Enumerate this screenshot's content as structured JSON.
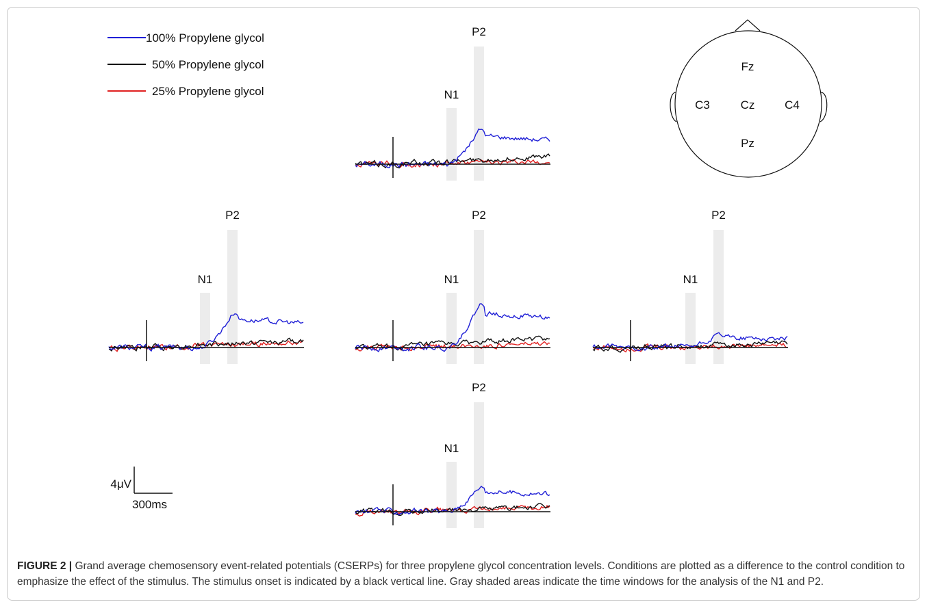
{
  "legend": [
    {
      "label": "100% Propylene glycol",
      "color": "#1f1fd6"
    },
    {
      "label": "50% Propylene glycol",
      "color": "#111111"
    },
    {
      "label": "25% Propylene glycol",
      "color": "#e02020"
    }
  ],
  "peak_labels": {
    "n1": "N1",
    "p2": "P2"
  },
  "head_electrodes": [
    "Fz",
    "C3",
    "Cz",
    "C4",
    "Pz"
  ],
  "scale_bar": {
    "amplitude": "4μV",
    "time": "300ms"
  },
  "caption": {
    "label": "FIGURE 2",
    "separator": "|",
    "text": "Grand average chemosensory event-related potentials (CSERPs) for three propylene glycol concentration levels. Conditions are plotted as a difference to the control condition to emphasize the effect of the stimulus. The stimulus onset is indicated by a black vertical line. Gray shaded areas indicate the time windows for the analysis of the N1 and P2."
  },
  "chart_data": [
    {
      "type": "line",
      "electrode": "Fz",
      "series": [
        {
          "name": "100% Propylene glycol",
          "peak_amp": 3.6
        },
        {
          "name": "50% Propylene glycol",
          "peak_amp": 0.9
        },
        {
          "name": "25% Propylene glycol",
          "peak_amp": 0.3
        }
      ]
    },
    {
      "type": "line",
      "electrode": "C3",
      "series": [
        {
          "name": "100% Propylene glycol",
          "peak_amp": 3.6
        },
        {
          "name": "50% Propylene glycol",
          "peak_amp": 0.8
        },
        {
          "name": "25% Propylene glycol",
          "peak_amp": 0.6
        }
      ]
    },
    {
      "type": "line",
      "electrode": "Cz",
      "series": [
        {
          "name": "100% Propylene glycol",
          "peak_amp": 4.4
        },
        {
          "name": "50% Propylene glycol",
          "peak_amp": 1.1
        },
        {
          "name": "25% Propylene glycol",
          "peak_amp": 0.4
        }
      ]
    },
    {
      "type": "line",
      "electrode": "C4",
      "series": [
        {
          "name": "100% Propylene glycol",
          "peak_amp": 1.3
        },
        {
          "name": "50% Propylene glycol",
          "peak_amp": 0.5
        },
        {
          "name": "25% Propylene glycol",
          "peak_amp": 0.3
        }
      ]
    },
    {
      "type": "line",
      "electrode": "Pz",
      "series": [
        {
          "name": "100% Propylene glycol",
          "peak_amp": 2.6
        },
        {
          "name": "50% Propylene glycol",
          "peak_amp": 0.6
        },
        {
          "name": "25% Propylene glycol",
          "peak_amp": 0.5
        }
      ]
    }
  ]
}
